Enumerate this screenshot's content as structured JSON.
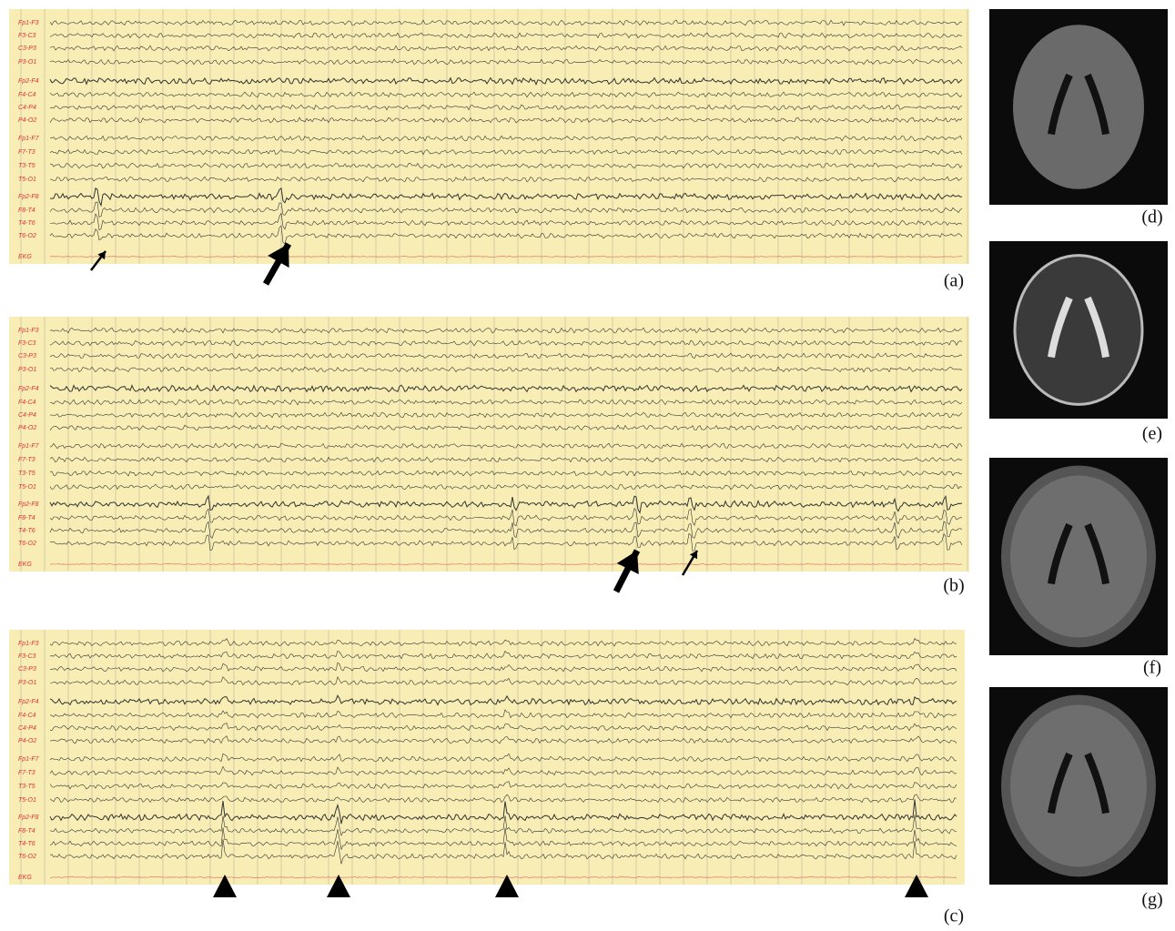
{
  "panels": [
    {
      "label": "(a)",
      "channels": [
        "Fp1-F3",
        "F3-C3",
        "C3-P3",
        "P3-O1",
        "Fp2-F4",
        "F4-C4",
        "C4-P4",
        "P4-O2",
        "Fp1-F7",
        "F7-T3",
        "T3-T5",
        "T5-O1",
        "Fp2-F8",
        "F8-T4",
        "T4-T6",
        "T6-O2",
        "EKG"
      ]
    },
    {
      "label": "(b)",
      "channels": [
        "Fp1-F3",
        "F3-C3",
        "C3-P3",
        "P3-O1",
        "Fp2-F4",
        "F4-C4",
        "C4-P4",
        "P4-O2",
        "Fp1-F7",
        "F7-T3",
        "T3-T5",
        "T5-O1",
        "Fp2-F8",
        "F8-T4",
        "T4-T6",
        "T6-O2",
        "EKG"
      ]
    },
    {
      "label": "(c)",
      "channels": [
        "Fp1-F3",
        "F3-C3",
        "C3-P3",
        "P3-O1",
        "Fp2-F4",
        "F4-C4",
        "C4-P4",
        "P4-O2",
        "Fp1-F7",
        "F7-T3",
        "T3-T5",
        "T5-O1",
        "Fp2-F8",
        "F8-T4",
        "T4-T6",
        "T6-O2",
        "EKG"
      ]
    }
  ],
  "images": [
    {
      "label": "(d)"
    },
    {
      "label": "(e)"
    },
    {
      "label": "(f)"
    },
    {
      "label": "(g)"
    }
  ]
}
